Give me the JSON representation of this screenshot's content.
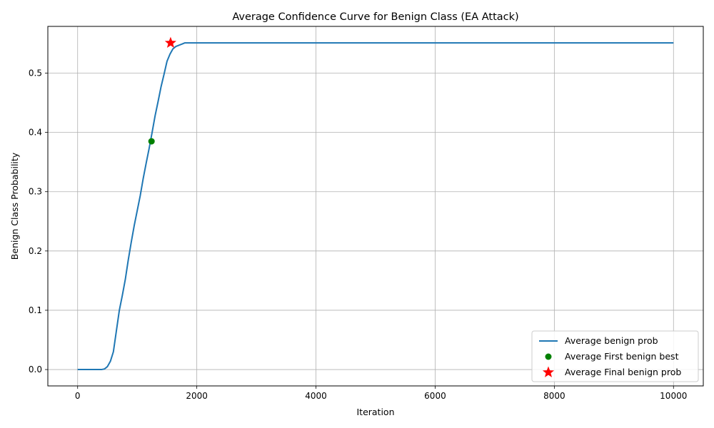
{
  "chart_data": {
    "type": "line",
    "title": "Average Confidence Curve for Benign Class (EA Attack)",
    "xlabel": "Iteration",
    "ylabel": "Benign Class Probability",
    "xlim": [
      -500,
      10500
    ],
    "ylim": [
      -0.0276,
      0.5788
    ],
    "xticks": [
      0,
      2000,
      4000,
      6000,
      8000,
      10000
    ],
    "yticks": [
      0.0,
      0.1,
      0.2,
      0.3,
      0.4,
      0.5
    ],
    "xtick_labels": [
      "0",
      "2000",
      "4000",
      "6000",
      "8000",
      "10000"
    ],
    "ytick_labels": [
      "0.0",
      "0.1",
      "0.2",
      "0.3",
      "0.4",
      "0.5"
    ],
    "grid": true,
    "legend_position": "lower right",
    "series": [
      {
        "name": "Average benign prob",
        "kind": "line",
        "color": "#1f77b4",
        "x": [
          0,
          100,
          200,
          300,
          400,
          450,
          500,
          550,
          600,
          650,
          700,
          750,
          800,
          850,
          900,
          950,
          1000,
          1050,
          1100,
          1150,
          1200,
          1250,
          1300,
          1350,
          1400,
          1450,
          1500,
          1550,
          1600,
          1650,
          1700,
          1750,
          1800,
          2000,
          3000,
          4000,
          5000,
          6000,
          7000,
          8000,
          9000,
          10000
        ],
        "y": [
          0.0,
          0.0,
          0.0,
          0.0,
          0.0,
          0.001,
          0.005,
          0.014,
          0.03,
          0.065,
          0.1,
          0.125,
          0.152,
          0.185,
          0.215,
          0.243,
          0.268,
          0.293,
          0.322,
          0.348,
          0.373,
          0.4,
          0.428,
          0.452,
          0.477,
          0.498,
          0.52,
          0.532,
          0.541,
          0.545,
          0.547,
          0.549,
          0.551,
          0.551,
          0.551,
          0.551,
          0.551,
          0.551,
          0.551,
          0.551,
          0.551,
          0.551
        ]
      },
      {
        "name": "Average First benign best",
        "kind": "scatter",
        "marker": "circle",
        "color": "#008000",
        "x": [
          1240
        ],
        "y": [
          0.385
        ]
      },
      {
        "name": "Average Final benign prob",
        "kind": "scatter",
        "marker": "star",
        "color": "#ff0000",
        "x": [
          1560
        ],
        "y": [
          0.551
        ]
      }
    ]
  }
}
